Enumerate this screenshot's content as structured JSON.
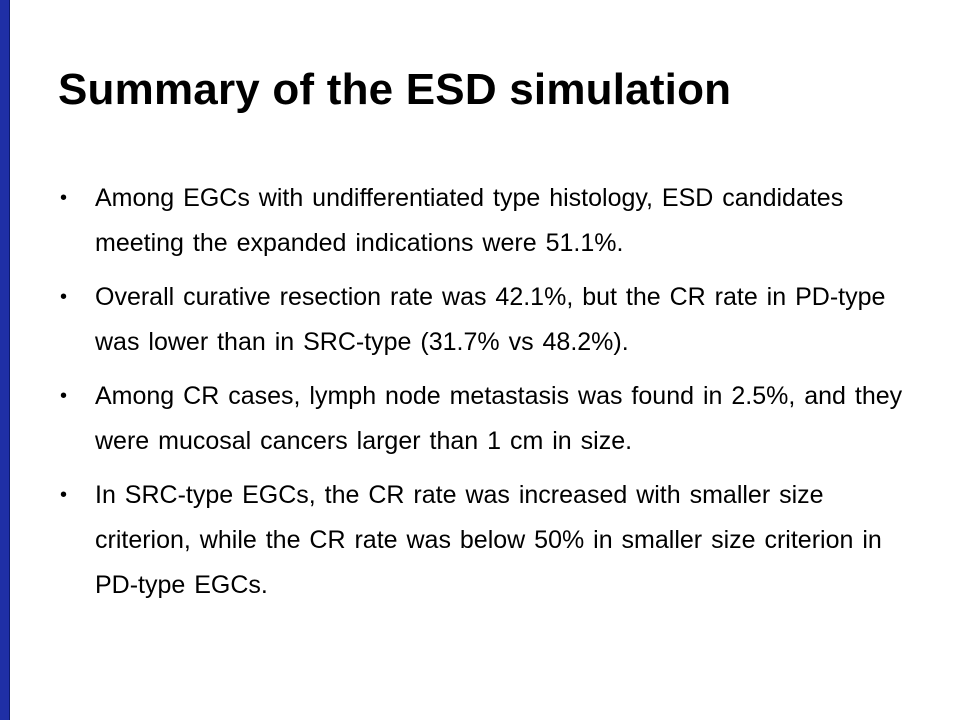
{
  "slide": {
    "title": "Summary of the ESD simulation",
    "bullet_glyph": "•",
    "bullets": [
      "Among EGCs with undifferentiated type histology, ESD candidates meeting the expanded indications were 51.1%.",
      "Overall curative resection rate was 42.1%, but the CR rate in PD-type was lower than in SRC-type (31.7% vs 48.2%).",
      "Among CR cases, lymph node metastasis was found in 2.5%, and they were mucosal cancers larger than 1 cm in size.",
      "In SRC-type EGCs, the CR rate was increased with smaller size criterion, while the CR rate was below 50% in smaller size criterion in PD-type EGCs."
    ]
  },
  "colors": {
    "accent_bar": "#1f2fa6",
    "background": "#ffffff",
    "text": "#000000"
  }
}
